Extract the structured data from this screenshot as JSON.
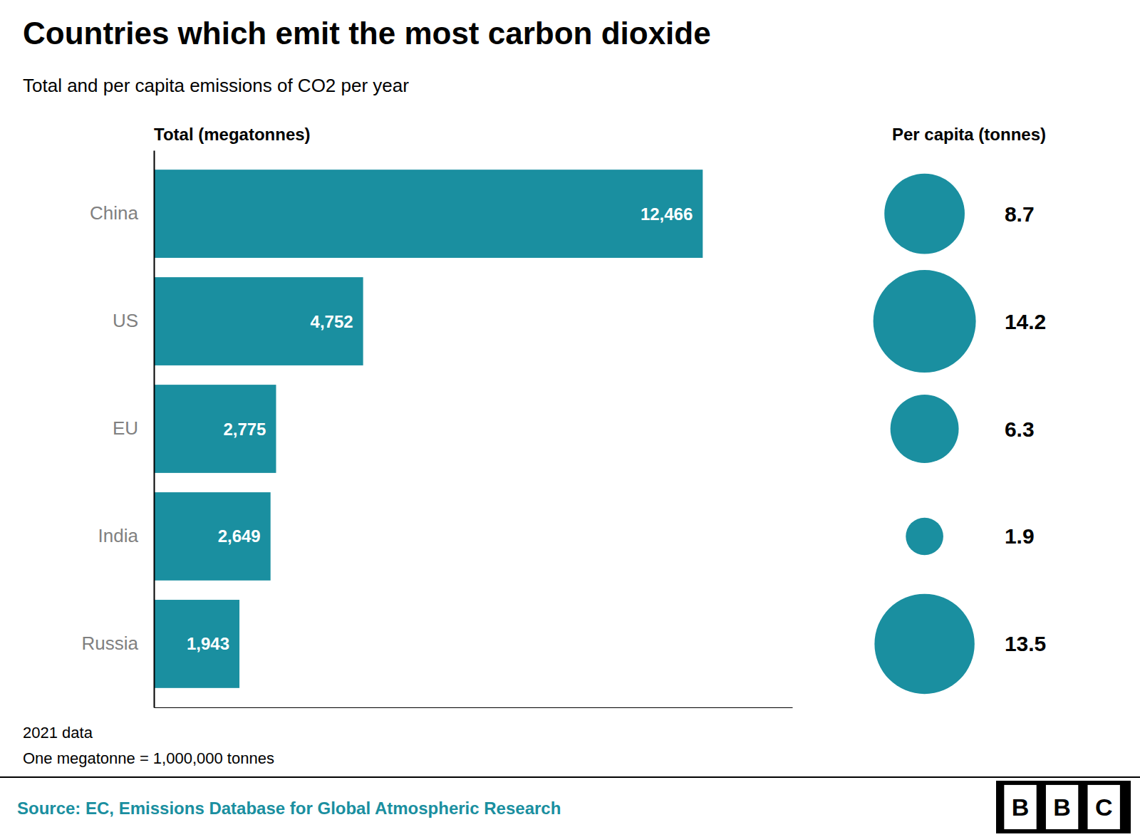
{
  "chart_data": {
    "type": "bar",
    "orientation": "horizontal",
    "title": "Countries which emit the most carbon dioxide",
    "subtitle": "Total and per capita emissions of CO2 per year",
    "xlabel": "Total (megatonnes)",
    "categories": [
      "China",
      "US",
      "EU",
      "India",
      "Russia"
    ],
    "values": [
      12466,
      4752,
      2775,
      2649,
      1943
    ],
    "value_labels": [
      "12,466",
      "4,752",
      "2,775",
      "2,649",
      "1,943"
    ],
    "data_labels": true,
    "color": "#1a8fa0",
    "xlim": [
      0,
      14500
    ],
    "tick_labels": "y",
    "grid": false,
    "per_capita_label": "Per capita (tonnes)",
    "per_capita": [
      8.7,
      14.2,
      6.3,
      1.9,
      13.5
    ],
    "footnotes": [
      "2021 data",
      "One megatonne = 1,000,000 tonnes"
    ],
    "source": "Source: EC, Emissions Database for Global Atmospheric Research",
    "logo": [
      "B",
      "B",
      "C"
    ]
  }
}
